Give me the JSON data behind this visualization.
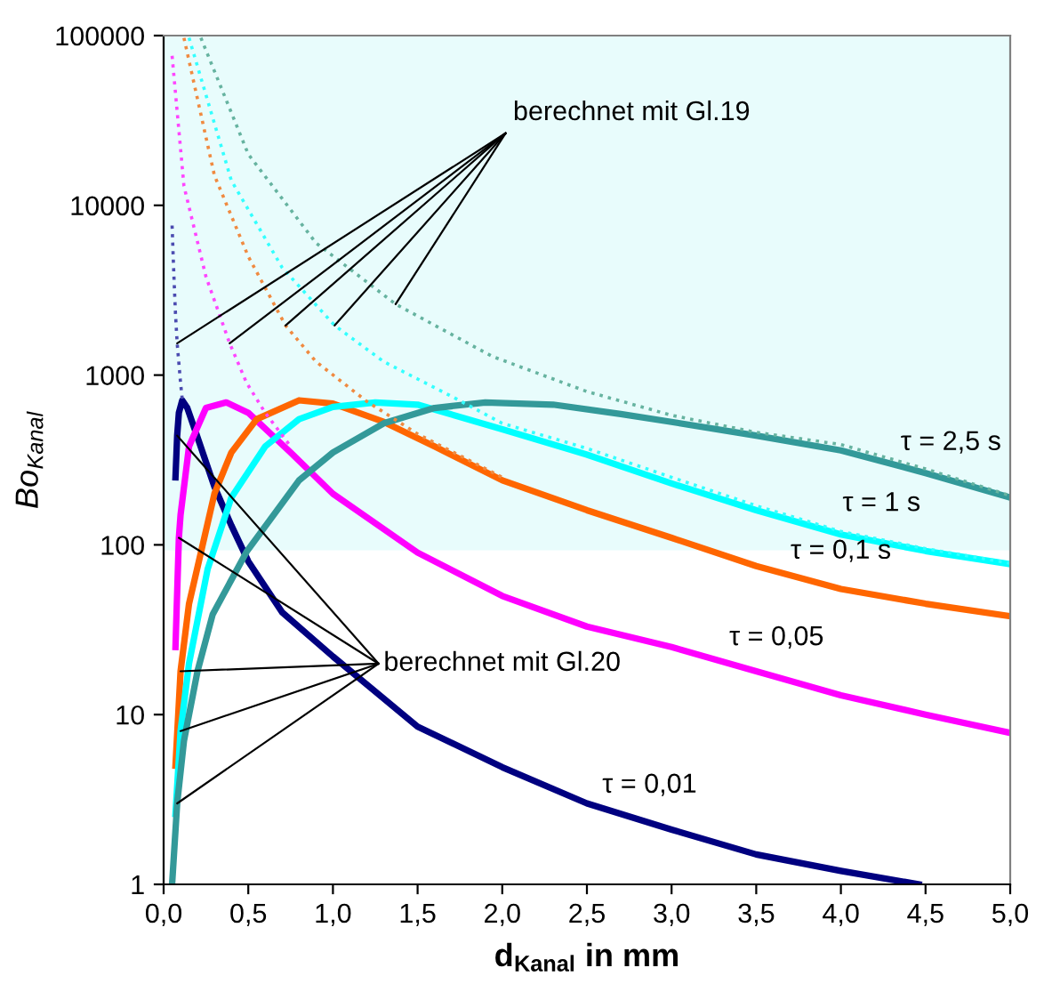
{
  "chart_data": {
    "type": "line",
    "log": "y",
    "xlabel": "d$_{Kanal}$ in mm",
    "ylabel": "Bo$_{Kanal}$",
    "xlim": [
      0,
      5
    ],
    "ylim": [
      1,
      100000
    ],
    "xticks": [
      {
        "value": 0,
        "label": "0,0"
      },
      {
        "value": 0.5,
        "label": "0,5"
      },
      {
        "value": 1,
        "label": "1,0"
      },
      {
        "value": 1.5,
        "label": "1,5"
      },
      {
        "value": 2,
        "label": "2,0"
      },
      {
        "value": 2.5,
        "label": "2,5"
      },
      {
        "value": 3,
        "label": "3,0"
      },
      {
        "value": 3.5,
        "label": "3,5"
      },
      {
        "value": 4,
        "label": "4,0"
      },
      {
        "value": 4.5,
        "label": "4,5"
      },
      {
        "value": 5,
        "label": "5,0"
      }
    ],
    "yticks": [
      1,
      10,
      100,
      1000,
      10000,
      100000
    ],
    "bands": [
      {
        "axis": "y",
        "from": 93,
        "to": 100000,
        "color": "#e8fcfc"
      }
    ],
    "series": [
      {
        "color": "#000080",
        "line_style": "solid",
        "x": [
          0.07,
          0.08,
          0.09,
          0.11,
          0.14,
          0.2,
          0.3,
          0.4,
          0.5,
          0.7,
          1.0,
          1.5,
          2.0,
          2.5,
          3.0,
          3.5,
          4.0,
          4.46
        ],
        "values": [
          250,
          440,
          600,
          710,
          640,
          430,
          220,
          130,
          80,
          40,
          22,
          8.5,
          4.9,
          3.0,
          2.1,
          1.5,
          1.2,
          1.0
        ]
      },
      {
        "color": "#ff00ff",
        "line_style": "solid",
        "x": [
          0.07,
          0.09,
          0.1,
          0.15,
          0.25,
          0.37,
          0.5,
          0.75,
          1.0,
          1.5,
          2.0,
          2.5,
          3.0,
          3.5,
          4.0,
          4.5,
          5.0
        ],
        "values": [
          25,
          110,
          150,
          380,
          640,
          690,
          600,
          350,
          200,
          90,
          50,
          33,
          25,
          18,
          13,
          10,
          7.8
        ]
      },
      {
        "color": "#ff6600",
        "line_style": "solid",
        "x": [
          0.07,
          0.1,
          0.15,
          0.22,
          0.3,
          0.4,
          0.55,
          0.8,
          1.0,
          1.3,
          1.6,
          2.0,
          2.5,
          3.0,
          3.5,
          4.0,
          4.5,
          5.0
        ],
        "values": [
          5,
          18,
          45,
          90,
          200,
          350,
          550,
          710,
          680,
          530,
          380,
          240,
          160,
          110,
          75,
          55,
          45,
          38
        ]
      },
      {
        "color": "#00ffff",
        "line_style": "solid",
        "x": [
          0.07,
          0.1,
          0.15,
          0.26,
          0.4,
          0.6,
          0.8,
          1.0,
          1.25,
          1.5,
          2.0,
          2.5,
          3.0,
          3.5,
          4.0,
          4.5,
          5.0
        ],
        "values": [
          2.6,
          8,
          20,
          72,
          190,
          380,
          550,
          650,
          690,
          670,
          480,
          340,
          230,
          160,
          115,
          92,
          77
        ]
      },
      {
        "color": "#339999",
        "line_style": "solid",
        "x": [
          0.05,
          0.08,
          0.12,
          0.2,
          0.29,
          0.49,
          0.8,
          1.0,
          1.3,
          1.6,
          1.9,
          2.3,
          2.7,
          3.0,
          3.5,
          4.0,
          4.5,
          5.0
        ],
        "values": [
          1,
          3,
          7,
          18,
          39,
          91,
          240,
          350,
          520,
          640,
          690,
          670,
          590,
          530,
          440,
          360,
          265,
          190
        ]
      },
      {
        "color": "#4b4bb0",
        "line_style": "dotted",
        "x": [
          0.05,
          0.06,
          0.07,
          0.08,
          0.1,
          0.11
        ],
        "values": [
          7600,
          4000,
          2300,
          1540,
          900,
          720
        ]
      },
      {
        "color": "#ff44ff",
        "line_style": "dotted",
        "x": [
          0.05,
          0.12,
          0.25,
          0.39,
          0.49,
          0.6,
          0.75
        ],
        "values": [
          76000,
          13000,
          3800,
          1540,
          900,
          600,
          380
        ]
      },
      {
        "color": "#f08a40",
        "line_style": "dotted",
        "x": [
          0.12,
          0.3,
          0.5,
          0.72,
          0.9,
          1.2,
          1.5,
          2.0
        ],
        "values": [
          97000,
          15000,
          5000,
          1960,
          1200,
          700,
          450,
          250
        ]
      },
      {
        "color": "#33ffff",
        "line_style": "dotted",
        "x": [
          0.15,
          0.4,
          0.7,
          1.01,
          1.3,
          1.7,
          2.0,
          2.5,
          3.0,
          3.5,
          4.0,
          4.5,
          5.0
        ],
        "values": [
          97000,
          14000,
          4300,
          1960,
          1200,
          750,
          520,
          370,
          250,
          170,
          120,
          95,
          78
        ]
      },
      {
        "color": "#66b3a0",
        "line_style": "dotted",
        "x": [
          0.22,
          0.5,
          0.9,
          1.37,
          1.94,
          2.5,
          3.0,
          3.5,
          4.0,
          4.5,
          5.0
        ],
        "values": [
          97000,
          20000,
          6000,
          2620,
          1290,
          800,
          580,
          460,
          390,
          280,
          195
        ]
      }
    ],
    "annotations": [
      {
        "text": "berechnet mit Gl.19",
        "x": 0.08,
        "y": 1540
      },
      {
        "text": "berechnet mit Gl.20",
        "x": 0.08,
        "y": 440
      },
      {
        "text": "τ = 2,5 s",
        "x": 4.65,
        "y": 240
      },
      {
        "text": "τ = 1 s",
        "x": 4.24,
        "y": 105
      },
      {
        "text": "τ = 0,1 s",
        "x": 4.0,
        "y": 55
      },
      {
        "text": "τ = 0,05",
        "x": 3.62,
        "y": 17
      },
      {
        "text": "τ = 0,01",
        "x": 2.87,
        "y": 2.3
      }
    ]
  }
}
